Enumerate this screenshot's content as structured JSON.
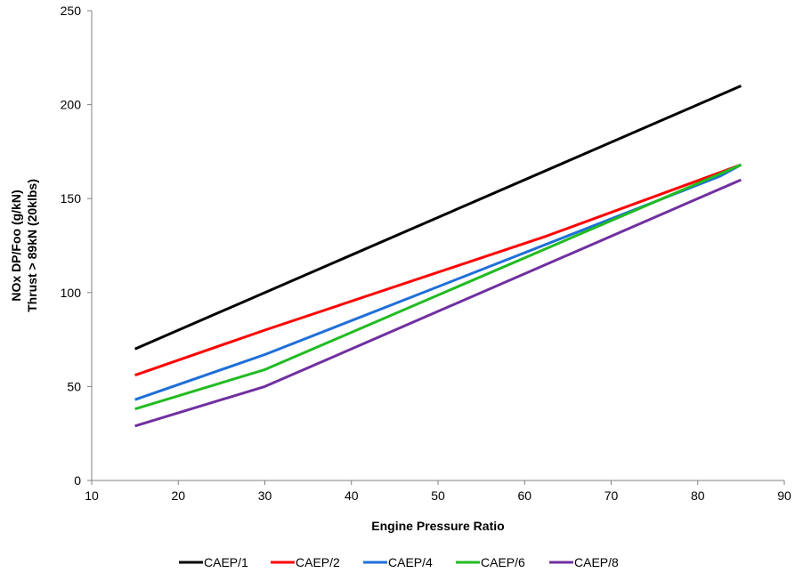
{
  "chart_data": {
    "type": "line",
    "xlabel": "Engine Pressure Ratio",
    "ylabel_lines": [
      "NOx DP/Foo (g/kN)",
      "Thrust > 89kN (20klbs)"
    ],
    "xlim": [
      10,
      90
    ],
    "ylim": [
      0,
      250
    ],
    "xticks": [
      10,
      20,
      30,
      40,
      50,
      60,
      70,
      80,
      90
    ],
    "yticks": [
      0,
      50,
      100,
      150,
      200,
      250
    ],
    "grid": false,
    "legend_position": "bottom",
    "series": [
      {
        "name": "CAEP/1",
        "color": "#000000",
        "x": [
          15,
          85
        ],
        "y": [
          70,
          210
        ]
      },
      {
        "name": "CAEP/2",
        "color": "#ff0000",
        "x": [
          15,
          30,
          62.5,
          85
        ],
        "y": [
          56,
          80,
          130,
          168
        ]
      },
      {
        "name": "CAEP/4",
        "color": "#1f6fd8",
        "x": [
          15,
          30,
          82.6,
          85
        ],
        "y": [
          43,
          67,
          162,
          168
        ]
      },
      {
        "name": "CAEP/6",
        "color": "#22bb22",
        "x": [
          15,
          30,
          85
        ],
        "y": [
          38,
          59,
          168
        ]
      },
      {
        "name": "CAEP/8",
        "color": "#7030a0",
        "x": [
          15,
          30,
          85
        ],
        "y": [
          29,
          50,
          160
        ]
      }
    ]
  }
}
